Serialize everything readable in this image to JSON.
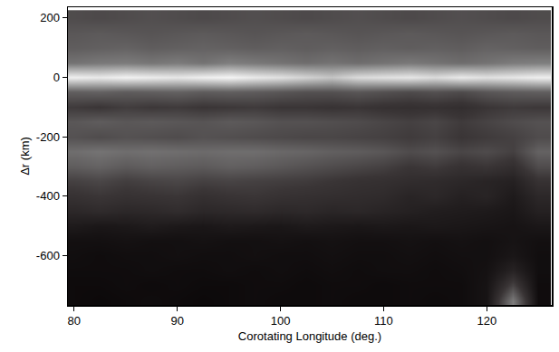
{
  "chart_data": {
    "type": "heatmap",
    "x_label": "Corotating Longitude (deg.)",
    "y_label": "Δr (km)",
    "x": [
      80,
      82.5,
      85,
      87.5,
      90,
      92.5,
      95,
      97.5,
      100,
      102.5,
      105,
      107.5,
      110,
      112.5,
      115,
      117.5,
      120,
      122.5,
      125
    ],
    "y": [
      -750,
      -700,
      -650,
      -600,
      -550,
      -500,
      -450,
      -400,
      -350,
      -300,
      -250,
      -200,
      -150,
      -100,
      -50,
      0,
      50,
      100,
      150,
      200
    ],
    "z": [
      [
        0.05,
        0.04,
        0.05,
        0.06,
        0.05,
        0.04,
        0.05,
        0.06,
        0.05,
        0.05,
        0.06,
        0.05,
        0.05,
        0.06,
        0.05,
        0.06,
        0.1,
        0.55,
        0.06
      ],
      [
        0.05,
        0.05,
        0.06,
        0.05,
        0.06,
        0.05,
        0.05,
        0.06,
        0.06,
        0.05,
        0.06,
        0.06,
        0.05,
        0.06,
        0.06,
        0.06,
        0.1,
        0.35,
        0.06
      ],
      [
        0.06,
        0.06,
        0.06,
        0.07,
        0.06,
        0.06,
        0.07,
        0.06,
        0.07,
        0.06,
        0.07,
        0.06,
        0.07,
        0.07,
        0.06,
        0.07,
        0.09,
        0.2,
        0.07
      ],
      [
        0.07,
        0.06,
        0.07,
        0.07,
        0.08,
        0.07,
        0.07,
        0.08,
        0.07,
        0.07,
        0.08,
        0.07,
        0.07,
        0.08,
        0.07,
        0.08,
        0.08,
        0.12,
        0.07
      ],
      [
        0.08,
        0.08,
        0.09,
        0.08,
        0.08,
        0.09,
        0.08,
        0.08,
        0.09,
        0.08,
        0.09,
        0.08,
        0.08,
        0.09,
        0.08,
        0.09,
        0.08,
        0.1,
        0.08
      ],
      [
        0.14,
        0.12,
        0.13,
        0.15,
        0.13,
        0.12,
        0.14,
        0.13,
        0.12,
        0.14,
        0.13,
        0.12,
        0.13,
        0.12,
        0.13,
        0.12,
        0.11,
        0.1,
        0.12
      ],
      [
        0.22,
        0.24,
        0.22,
        0.23,
        0.25,
        0.22,
        0.23,
        0.24,
        0.22,
        0.23,
        0.21,
        0.22,
        0.2,
        0.18,
        0.16,
        0.15,
        0.14,
        0.12,
        0.18
      ],
      [
        0.28,
        0.3,
        0.28,
        0.29,
        0.3,
        0.27,
        0.29,
        0.3,
        0.28,
        0.27,
        0.26,
        0.25,
        0.24,
        0.2,
        0.22,
        0.18,
        0.2,
        0.14,
        0.22
      ],
      [
        0.34,
        0.36,
        0.33,
        0.35,
        0.36,
        0.34,
        0.35,
        0.34,
        0.33,
        0.32,
        0.3,
        0.28,
        0.27,
        0.25,
        0.24,
        0.22,
        0.2,
        0.18,
        0.28
      ],
      [
        0.44,
        0.46,
        0.43,
        0.45,
        0.44,
        0.43,
        0.45,
        0.44,
        0.42,
        0.4,
        0.38,
        0.36,
        0.34,
        0.3,
        0.32,
        0.28,
        0.3,
        0.26,
        0.38
      ],
      [
        0.5,
        0.52,
        0.5,
        0.51,
        0.5,
        0.49,
        0.5,
        0.5,
        0.48,
        0.47,
        0.45,
        0.44,
        0.42,
        0.38,
        0.4,
        0.36,
        0.38,
        0.34,
        0.46
      ],
      [
        0.4,
        0.38,
        0.4,
        0.39,
        0.38,
        0.4,
        0.39,
        0.38,
        0.37,
        0.36,
        0.36,
        0.35,
        0.34,
        0.32,
        0.34,
        0.3,
        0.32,
        0.34,
        0.38
      ],
      [
        0.42,
        0.44,
        0.42,
        0.43,
        0.42,
        0.41,
        0.43,
        0.42,
        0.4,
        0.4,
        0.39,
        0.38,
        0.36,
        0.34,
        0.36,
        0.32,
        0.35,
        0.38,
        0.4
      ],
      [
        0.32,
        0.3,
        0.33,
        0.31,
        0.32,
        0.3,
        0.31,
        0.32,
        0.3,
        0.3,
        0.29,
        0.3,
        0.28,
        0.27,
        0.28,
        0.26,
        0.3,
        0.32,
        0.31
      ],
      [
        0.45,
        0.46,
        0.44,
        0.45,
        0.46,
        0.44,
        0.45,
        0.44,
        0.42,
        0.4,
        0.4,
        0.42,
        0.4,
        0.38,
        0.4,
        0.38,
        0.42,
        0.44,
        0.45
      ],
      [
        0.95,
        0.93,
        0.96,
        0.94,
        0.92,
        0.95,
        0.97,
        0.93,
        0.9,
        0.85,
        0.8,
        0.88,
        0.9,
        0.92,
        0.88,
        0.93,
        0.9,
        0.92,
        0.95
      ],
      [
        0.52,
        0.54,
        0.55,
        0.53,
        0.55,
        0.52,
        0.56,
        0.54,
        0.52,
        0.5,
        0.52,
        0.5,
        0.52,
        0.54,
        0.52,
        0.5,
        0.52,
        0.55,
        0.56
      ],
      [
        0.44,
        0.45,
        0.46,
        0.44,
        0.45,
        0.46,
        0.45,
        0.44,
        0.45,
        0.44,
        0.45,
        0.44,
        0.45,
        0.44,
        0.45,
        0.44,
        0.46,
        0.45,
        0.44
      ],
      [
        0.42,
        0.43,
        0.42,
        0.41,
        0.42,
        0.43,
        0.42,
        0.41,
        0.42,
        0.43,
        0.42,
        0.41,
        0.42,
        0.43,
        0.42,
        0.41,
        0.42,
        0.43,
        0.42
      ],
      [
        0.38,
        0.37,
        0.38,
        0.39,
        0.38,
        0.37,
        0.38,
        0.39,
        0.38,
        0.37,
        0.38,
        0.39,
        0.38,
        0.37,
        0.38,
        0.39,
        0.38,
        0.37,
        0.38
      ]
    ],
    "zlim": [
      0,
      1
    ],
    "xlim": [
      79.4,
      126.3
    ],
    "ylim": [
      -765,
      235
    ],
    "xticks": [
      80,
      90,
      100,
      110,
      120
    ],
    "yticks": [
      200,
      0,
      -200,
      -400,
      -600
    ],
    "grid": false
  }
}
